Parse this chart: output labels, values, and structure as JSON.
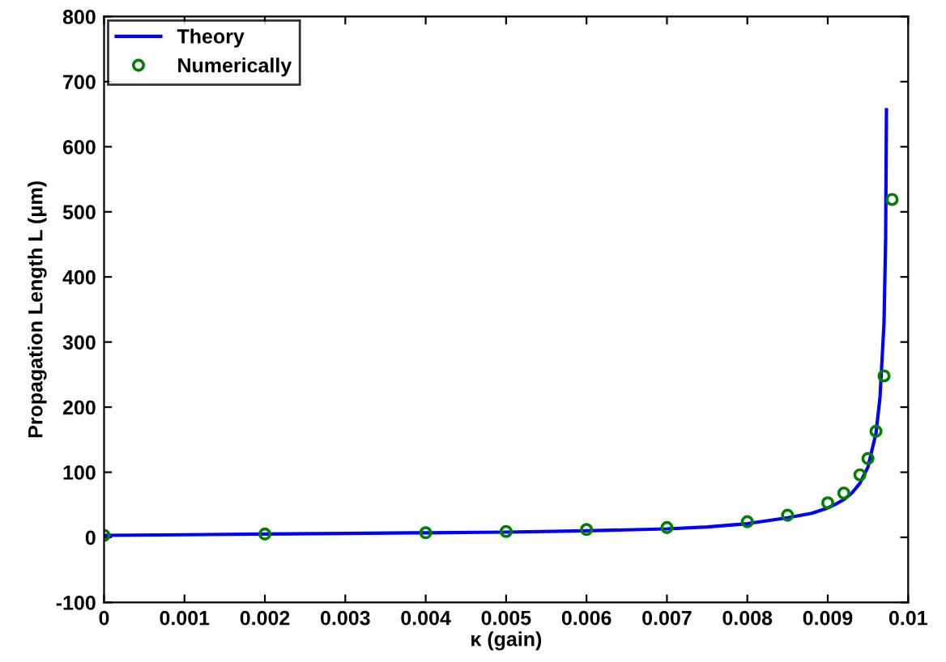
{
  "chart_data": {
    "type": "line",
    "xlabel": "κ (gain)",
    "ylabel": "Propagation Length L (μm)",
    "xlim": [
      0,
      0.01
    ],
    "ylim": [
      -100,
      800
    ],
    "xticks": [
      0,
      0.001,
      0.002,
      0.003,
      0.004,
      0.005,
      0.006,
      0.007,
      0.008,
      0.009,
      {
        "value": 0.01,
        "label": "0.01"
      }
    ],
    "yticks": [
      -100,
      0,
      100,
      200,
      300,
      400,
      500,
      600,
      700,
      800
    ],
    "grid": false,
    "legend": "top left",
    "series": [
      {
        "name": "Theory",
        "type": "line",
        "color": "#0000ff",
        "marker": "none",
        "line_style": "solid",
        "x": [
          0,
          0.001,
          0.002,
          0.003,
          0.004,
          0.005,
          0.006,
          0.007,
          0.0075,
          0.008,
          0.0085,
          0.0088,
          0.009,
          0.0091,
          0.0092,
          0.0093,
          0.0094,
          0.0095,
          0.0096,
          0.00965,
          0.0097,
          0.00972,
          0.00973
        ],
        "values": [
          3,
          4,
          5,
          6,
          7,
          8,
          10,
          13,
          16,
          21,
          30,
          37,
          45,
          51,
          58,
          68,
          83,
          108,
          160,
          215,
          330,
          460,
          657
        ]
      },
      {
        "name": "Numerically",
        "type": "scatter",
        "color": "#008000",
        "marker": "circle",
        "x": [
          0,
          0.002,
          0.004,
          0.005,
          0.006,
          0.007,
          0.008,
          0.0085,
          0.009,
          0.0092,
          0.0094,
          0.0095,
          0.0096,
          0.0097,
          0.0098
        ],
        "values": [
          3,
          5,
          7,
          9,
          12,
          15,
          24,
          34,
          53,
          68,
          96,
          121,
          163,
          248,
          519
        ]
      }
    ]
  }
}
